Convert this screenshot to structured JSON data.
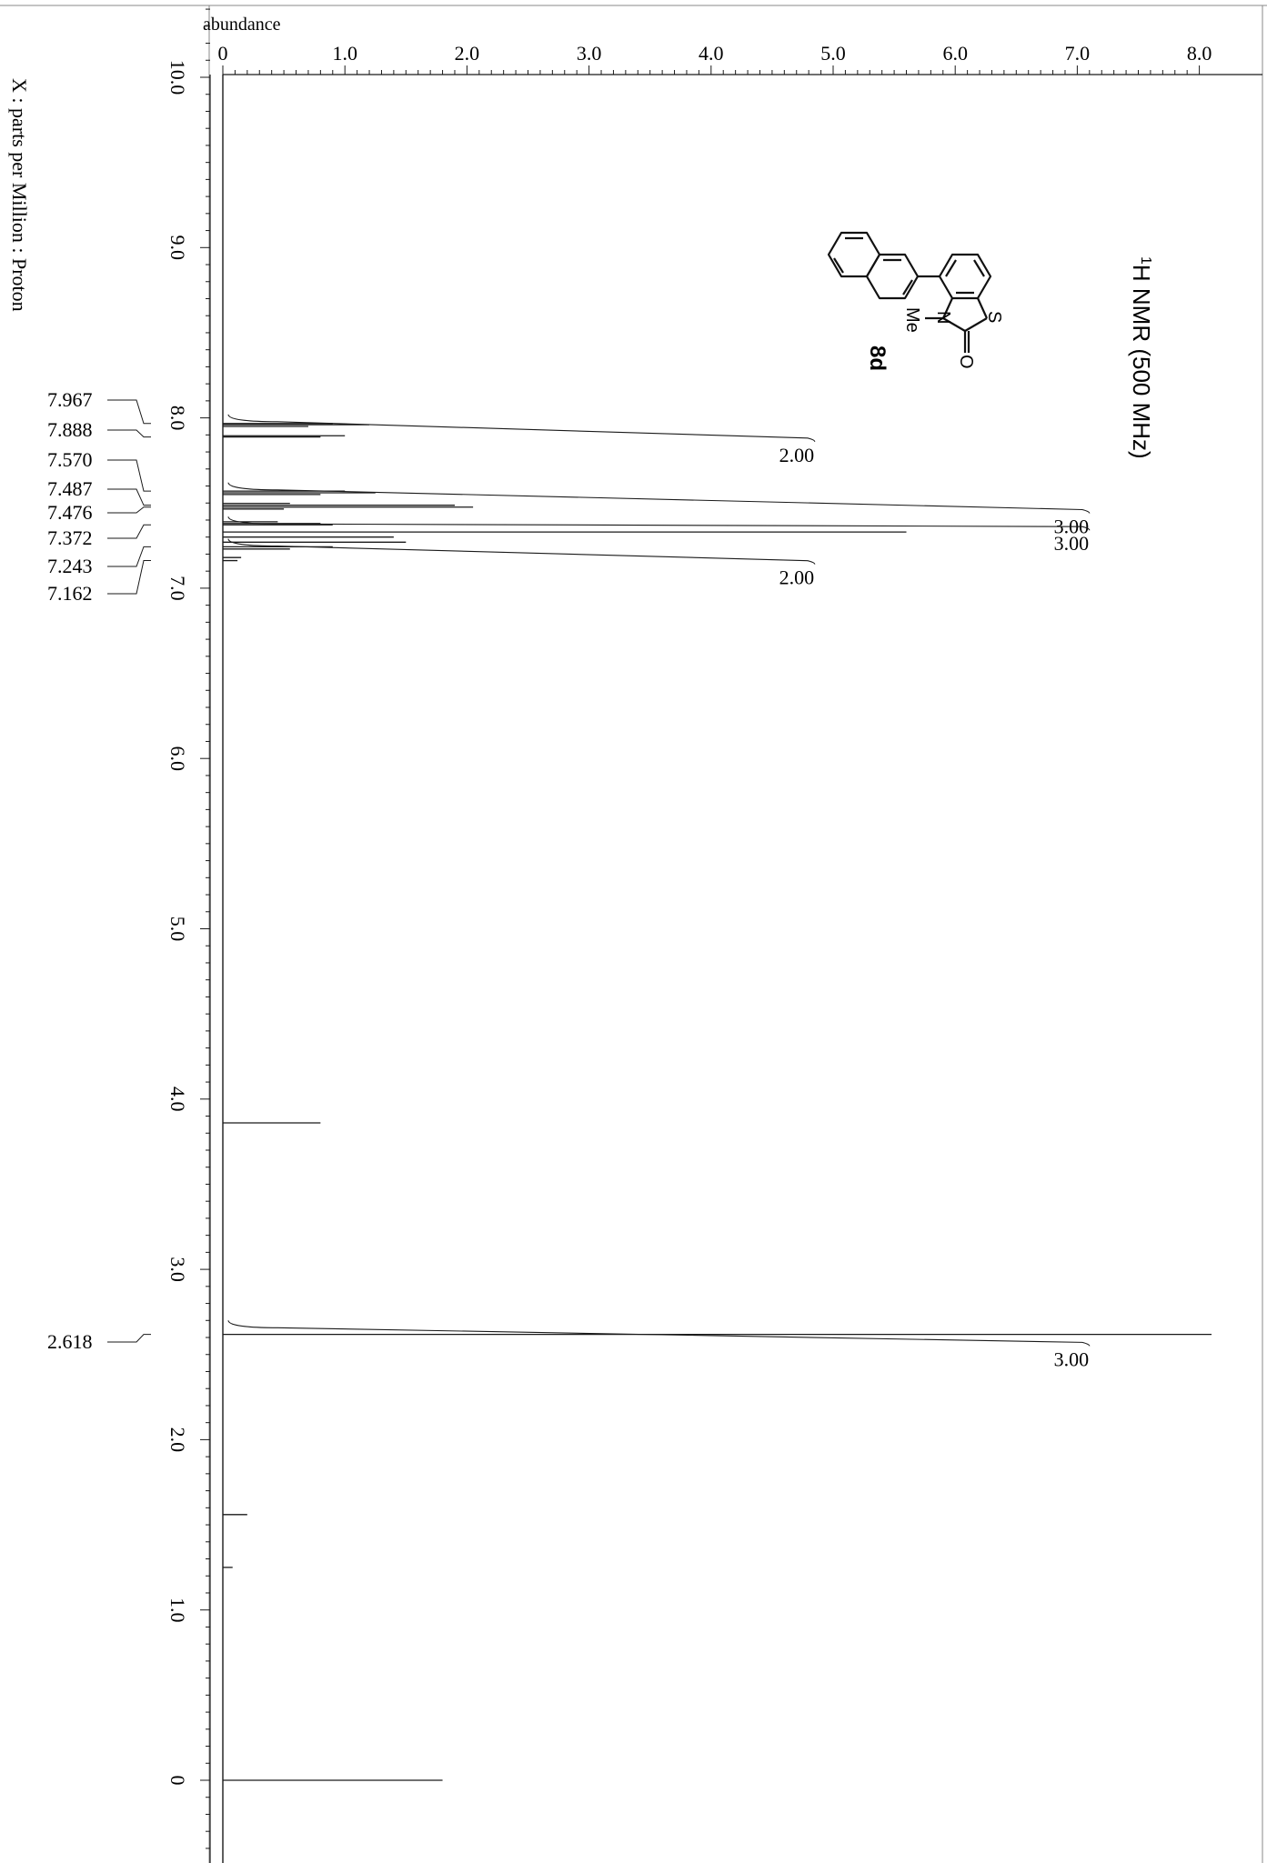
{
  "x_axis_title": "X : parts per Million : Proton",
  "y_axis_title": "abundance",
  "experiment_label_rest": "H NMR (500 MHz)",
  "experiment_label_sup": "1",
  "compound": {
    "label": "8d",
    "atoms": [
      "S",
      "N",
      "Me",
      "O"
    ]
  },
  "colors": {
    "line": "#1a1a1a",
    "background": "#ffffff"
  },
  "chart_data": {
    "type": "line",
    "orientation": "rotated: chemical shift axis vertical, abundance axis horizontal",
    "x_axis": {
      "label": "X : parts per Million : Proton",
      "range": [
        10.5,
        -0.5
      ],
      "ticks": [
        10.0,
        9.0,
        8.0,
        7.0,
        6.0,
        5.0,
        4.0,
        3.0,
        2.0,
        1.0,
        0
      ],
      "tick_labels": [
        "10.0",
        "9.0",
        "8.0",
        "7.0",
        "6.0",
        "5.0",
        "4.0",
        "3.0",
        "2.0",
        "1.0",
        "0"
      ]
    },
    "y_axis": {
      "label": "abundance",
      "range": [
        0,
        8.0
      ],
      "ticks": [
        0,
        1.0,
        2.0,
        3.0,
        4.0,
        5.0,
        6.0,
        7.0,
        8.0
      ],
      "tick_labels": [
        "0",
        "1.0",
        "2.0",
        "3.0",
        "4.0",
        "5.0",
        "6.0",
        "7.0",
        "8.0"
      ]
    },
    "peak_labels": [
      "7.967",
      "7.888",
      "7.570",
      "7.487",
      "7.476",
      "7.372",
      "7.243",
      "7.162",
      "2.618"
    ],
    "peaks": [
      {
        "ppm": 7.967,
        "intensity": 0.9
      },
      {
        "ppm": 7.96,
        "intensity": 1.2
      },
      {
        "ppm": 7.95,
        "intensity": 0.7
      },
      {
        "ppm": 7.895,
        "intensity": 1.0
      },
      {
        "ppm": 7.888,
        "intensity": 0.8
      },
      {
        "ppm": 7.57,
        "intensity": 1.0
      },
      {
        "ppm": 7.56,
        "intensity": 1.25
      },
      {
        "ppm": 7.55,
        "intensity": 0.8
      },
      {
        "ppm": 7.498,
        "intensity": 0.55
      },
      {
        "ppm": 7.487,
        "intensity": 1.9
      },
      {
        "ppm": 7.476,
        "intensity": 2.05
      },
      {
        "ppm": 7.465,
        "intensity": 0.5
      },
      {
        "ppm": 7.39,
        "intensity": 0.45
      },
      {
        "ppm": 7.38,
        "intensity": 0.8
      },
      {
        "ppm": 7.372,
        "intensity": 0.9
      },
      {
        "ppm": 7.33,
        "intensity": 5.6
      },
      {
        "ppm": 7.3,
        "intensity": 1.4
      },
      {
        "ppm": 7.27,
        "intensity": 1.5
      },
      {
        "ppm": 7.243,
        "intensity": 0.9
      },
      {
        "ppm": 7.23,
        "intensity": 0.55
      },
      {
        "ppm": 7.18,
        "intensity": 0.15
      },
      {
        "ppm": 7.162,
        "intensity": 0.12
      },
      {
        "ppm": 3.86,
        "intensity": 0.8
      },
      {
        "ppm": 2.618,
        "intensity": 8.1
      },
      {
        "ppm": 1.56,
        "intensity": 0.2
      },
      {
        "ppm": 1.25,
        "intensity": 0.08
      },
      {
        "ppm": 0.0,
        "intensity": 1.8
      }
    ],
    "integrals": [
      {
        "from": 8.02,
        "to": 7.86,
        "value": "2.00",
        "height": 4.85
      },
      {
        "from": 7.62,
        "to": 7.44,
        "value": "3.00",
        "height": 7.1
      },
      {
        "from": 7.42,
        "to": 7.34,
        "value": "3.00",
        "height": 7.1
      },
      {
        "from": 7.29,
        "to": 7.14,
        "value": "2.00",
        "height": 4.85
      },
      {
        "from": 2.7,
        "to": 2.55,
        "value": "3.00",
        "height": 7.1
      }
    ]
  }
}
